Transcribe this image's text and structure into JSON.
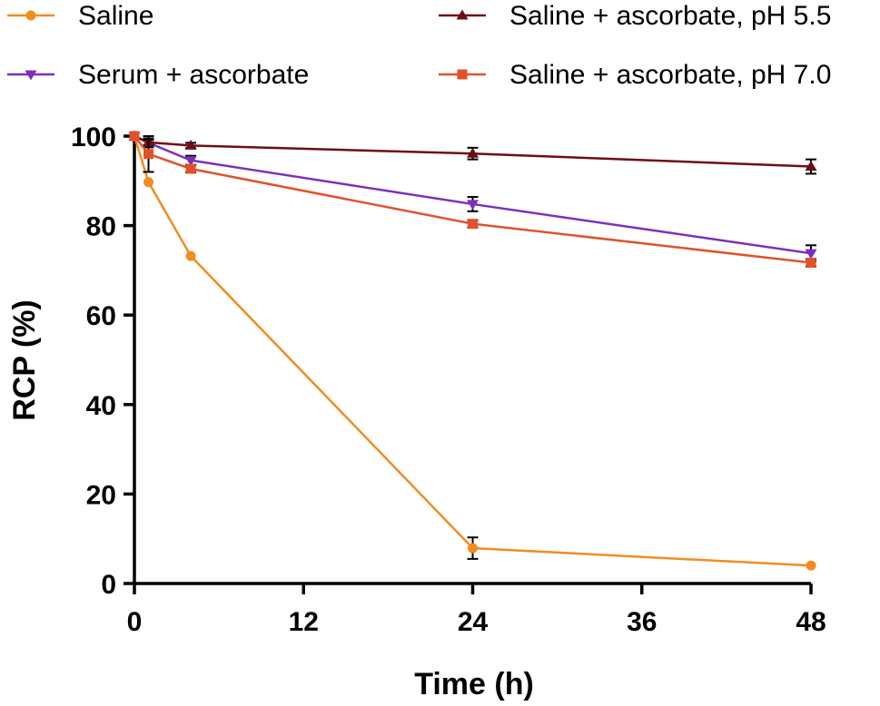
{
  "chart_data": {
    "type": "line",
    "title": "",
    "xlabel": "Time (h)",
    "ylabel": "RCP (%)",
    "xlim": [
      0,
      48
    ],
    "ylim": [
      0,
      100
    ],
    "xticks": [
      0,
      12,
      24,
      36,
      48
    ],
    "yticks": [
      0,
      20,
      40,
      60,
      80,
      100
    ],
    "x_tick_labels": [
      "0",
      "12",
      "24",
      "36",
      "48"
    ],
    "y_tick_labels": [
      "0",
      "20",
      "40",
      "60",
      "80",
      "100"
    ],
    "grid": false,
    "legend_position": "top",
    "series": [
      {
        "name": "Saline",
        "color": "#f28c1e",
        "marker": "circle",
        "points": [
          {
            "x": 0,
            "y": 100,
            "err": 0
          },
          {
            "x": 1,
            "y": 89.7,
            "err": 0
          },
          {
            "x": 4,
            "y": 73.2,
            "err": 0
          },
          {
            "x": 24,
            "y": 7.9,
            "err": 2.4
          },
          {
            "x": 48,
            "y": 4.0,
            "err": 0
          }
        ]
      },
      {
        "name": "Serum + ascorbate",
        "color": "#7b2fbe",
        "marker": "triangle-down",
        "points": [
          {
            "x": 0,
            "y": 100,
            "err": 0
          },
          {
            "x": 1,
            "y": 98.5,
            "err": 1.0
          },
          {
            "x": 4,
            "y": 94.6,
            "err": 1.0
          },
          {
            "x": 24,
            "y": 84.8,
            "err": 1.6
          },
          {
            "x": 48,
            "y": 73.8,
            "err": 1.8
          }
        ]
      },
      {
        "name": "Saline + ascorbate, pH 5.5",
        "color": "#6e0d14",
        "marker": "triangle-up",
        "points": [
          {
            "x": 0,
            "y": 100,
            "err": 0
          },
          {
            "x": 1,
            "y": 98.6,
            "err": 0.6
          },
          {
            "x": 4,
            "y": 97.9,
            "err": 0.6
          },
          {
            "x": 24,
            "y": 96.1,
            "err": 1.3
          },
          {
            "x": 48,
            "y": 93.2,
            "err": 1.6
          }
        ]
      },
      {
        "name": "Saline + ascorbate, pH 7.0",
        "color": "#e0532a",
        "marker": "square",
        "points": [
          {
            "x": 0,
            "y": 100,
            "err": 0
          },
          {
            "x": 1,
            "y": 96.0,
            "err": 4.0
          },
          {
            "x": 4,
            "y": 92.7,
            "err": 0.8
          },
          {
            "x": 24,
            "y": 80.4,
            "err": 0.8
          },
          {
            "x": 48,
            "y": 71.7,
            "err": 0.8
          }
        ]
      }
    ]
  }
}
